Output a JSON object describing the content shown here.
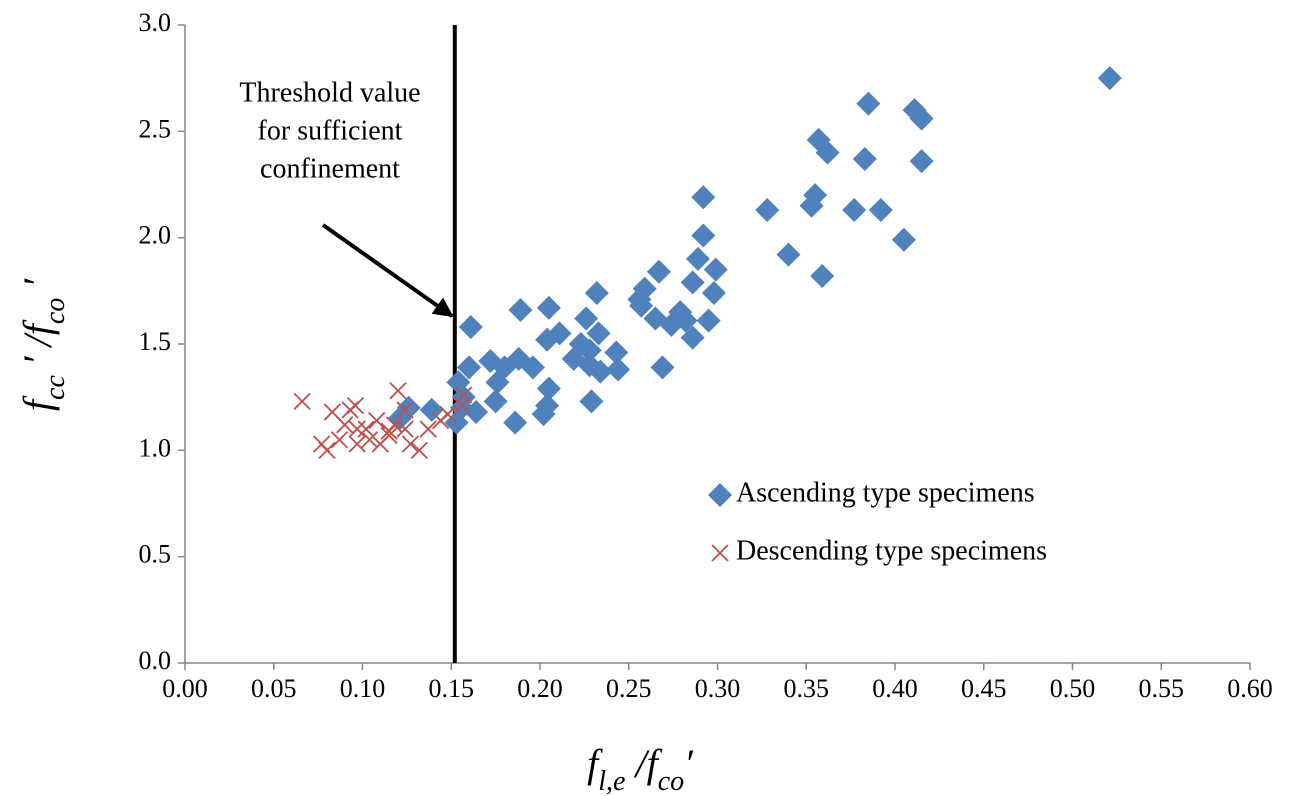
{
  "chart_data": {
    "type": "scatter",
    "xlabel": [
      "f",
      "l,e",
      " /f",
      "co",
      "′"
    ],
    "ylabel": [
      "f",
      "cc",
      " ′ /f",
      "co",
      " ′"
    ],
    "xlim": [
      0,
      0.6
    ],
    "ylim": [
      0,
      3
    ],
    "xticks": [
      {
        "value": 0,
        "label": "0.00"
      },
      {
        "value": 0.05,
        "label": "0.05"
      },
      {
        "value": 0.1,
        "label": "0.10"
      },
      {
        "value": 0.15,
        "label": "0.15"
      },
      {
        "value": 0.2,
        "label": "0.20"
      },
      {
        "value": 0.25,
        "label": "0.25"
      },
      {
        "value": 0.3,
        "label": "0.30"
      },
      {
        "value": 0.35,
        "label": "0.35"
      },
      {
        "value": 0.4,
        "label": "0.40"
      },
      {
        "value": 0.45,
        "label": "0.45"
      },
      {
        "value": 0.5,
        "label": "0.50"
      },
      {
        "value": 0.55,
        "label": "0.55"
      },
      {
        "value": 0.6,
        "label": "0.60"
      }
    ],
    "yticks": [
      {
        "value": 0,
        "label": "0.0"
      },
      {
        "value": 0.5,
        "label": "0.5"
      },
      {
        "value": 1,
        "label": "1.0"
      },
      {
        "value": 1.5,
        "label": "1.5"
      },
      {
        "value": 2,
        "label": "2.0"
      },
      {
        "value": 2.5,
        "label": "2.5"
      },
      {
        "value": 3,
        "label": "3.0"
      }
    ],
    "grid": false,
    "legend": "center right",
    "threshold_x": 0.152,
    "annotation": [
      "Threshold value",
      "for sufficient",
      "confinement"
    ],
    "series": [
      {
        "name": "Ascending type specimens",
        "color": "#4f81bd",
        "marker": "diamond",
        "x": [
          0.521,
          0.385,
          0.411,
          0.415,
          0.357,
          0.362,
          0.383,
          0.415,
          0.355,
          0.353,
          0.292,
          0.328,
          0.377,
          0.392,
          0.292,
          0.405,
          0.34,
          0.359,
          0.289,
          0.299,
          0.267,
          0.259,
          0.286,
          0.298,
          0.232,
          0.205,
          0.161,
          0.189,
          0.226,
          0.256,
          0.257,
          0.265,
          0.274,
          0.282,
          0.279,
          0.295,
          0.286,
          0.233,
          0.211,
          0.204,
          0.223,
          0.228,
          0.243,
          0.219,
          0.228,
          0.234,
          0.244,
          0.269,
          0.188,
          0.196,
          0.172,
          0.18,
          0.16,
          0.176,
          0.154,
          0.175,
          0.205,
          0.204,
          0.202,
          0.186,
          0.164,
          0.156,
          0.229,
          0.139,
          0.153,
          0.126,
          0.121,
          0.157
        ],
        "values": [
          2.75,
          2.63,
          2.6,
          2.56,
          2.46,
          2.4,
          2.37,
          2.36,
          2.2,
          2.15,
          2.19,
          2.13,
          2.13,
          2.13,
          2.01,
          1.99,
          1.92,
          1.82,
          1.9,
          1.85,
          1.84,
          1.76,
          1.79,
          1.74,
          1.74,
          1.67,
          1.58,
          1.66,
          1.62,
          1.71,
          1.68,
          1.62,
          1.59,
          1.61,
          1.65,
          1.61,
          1.53,
          1.55,
          1.55,
          1.52,
          1.5,
          1.47,
          1.46,
          1.43,
          1.4,
          1.37,
          1.38,
          1.39,
          1.43,
          1.39,
          1.42,
          1.39,
          1.39,
          1.32,
          1.32,
          1.23,
          1.29,
          1.21,
          1.17,
          1.13,
          1.18,
          1.2,
          1.23,
          1.19,
          1.13,
          1.2,
          1.15,
          1.25
        ]
      },
      {
        "name": "Descending type specimens",
        "color": "#c0504d",
        "marker": "cross",
        "x": [
          0.066,
          0.083,
          0.093,
          0.096,
          0.12,
          0.077,
          0.08,
          0.087,
          0.097,
          0.102,
          0.104,
          0.108,
          0.11,
          0.115,
          0.118,
          0.124,
          0.127,
          0.132,
          0.137,
          0.144,
          0.148,
          0.156,
          0.157,
          0.097,
          0.09,
          0.115,
          0.124
        ],
        "values": [
          1.23,
          1.18,
          1.19,
          1.21,
          1.28,
          1.03,
          1.0,
          1.05,
          1.1,
          1.1,
          1.05,
          1.14,
          1.03,
          1.07,
          1.12,
          1.1,
          1.03,
          1.0,
          1.1,
          1.14,
          1.17,
          1.21,
          1.26,
          1.03,
          1.12,
          1.09,
          1.19
        ]
      }
    ]
  }
}
